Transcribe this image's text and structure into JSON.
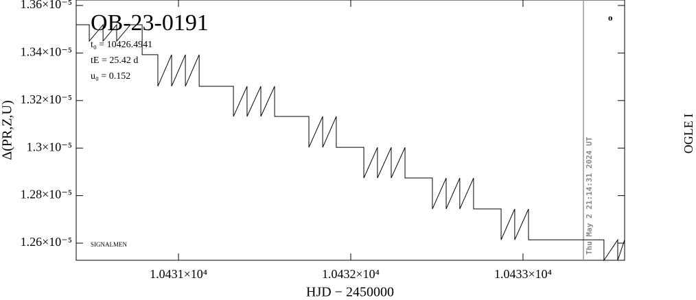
{
  "chart_data": {
    "type": "line",
    "title": "OB-23-0191",
    "x_label": "HJD − 2450000",
    "y_label": "Δ(PR,Z,U)",
    "side_label": "OGLE I",
    "timestamp": "Thu May  2 21:14:31 2024 UT",
    "annotations": [
      "t₀ = 10426.4941",
      "tE = 25.42 d",
      "u₀ = 0.152",
      "SIGNALMEN",
      "o"
    ],
    "marker_line_x": 10433.351,
    "color": "#000000",
    "xlim": [
      10430.406,
      10433.59
    ],
    "ylim": [
      1.2528e-05,
      1.3623e-05
    ],
    "xticks": [
      {
        "value": 10431,
        "label": "1.0431×10⁴"
      },
      {
        "value": 10432,
        "label": "1.0432×10⁴"
      },
      {
        "value": 10433,
        "label": "1.0433×10⁴"
      }
    ],
    "yticks": [
      {
        "value": 1.26e-05,
        "label": "1.26×10⁻⁵"
      },
      {
        "value": 1.28e-05,
        "label": "1.28×10⁻⁵"
      },
      {
        "value": 1.3e-05,
        "label": "1.3×10⁻⁵"
      },
      {
        "value": 1.32e-05,
        "label": "1.32×10⁻⁵"
      },
      {
        "value": 1.34e-05,
        "label": "1.34×10⁻⁵"
      },
      {
        "value": 1.36e-05,
        "label": "1.36×10⁻⁵"
      }
    ],
    "x": [
      10430.406,
      10430.482,
      10430.482,
      10430.562,
      10430.562,
      10430.641,
      10430.641,
      10430.721,
      10430.789,
      10430.789,
      10430.88,
      10430.88,
      10430.96,
      10430.96,
      10431.04,
      10431.04,
      10431.12,
      10431.12,
      10431.219,
      10431.319,
      10431.319,
      10431.398,
      10431.398,
      10431.478,
      10431.478,
      10431.558,
      10431.558,
      10431.669,
      10431.757,
      10431.757,
      10431.837,
      10431.837,
      10431.916,
      10431.916,
      10432.0,
      10432.076,
      10432.076,
      10432.155,
      10432.155,
      10432.235,
      10432.235,
      10432.315,
      10432.315,
      10432.398,
      10432.474,
      10432.474,
      10432.554,
      10432.554,
      10432.633,
      10432.633,
      10432.713,
      10432.713,
      10432.789,
      10432.873,
      10432.873,
      10432.952,
      10432.952,
      10433.032,
      10433.032,
      10433.112,
      10433.398,
      10433.47,
      10433.47,
      10433.55,
      10433.55,
      10433.59
    ],
    "values": [
      1.3519e-05,
      1.3519e-05,
      1.345e-05,
      1.3519e-05,
      1.345e-05,
      1.3519e-05,
      1.345e-05,
      1.3519e-05,
      1.3519e-05,
      1.3393e-05,
      1.3393e-05,
      1.326e-05,
      1.3393e-05,
      1.326e-05,
      1.3393e-05,
      1.326e-05,
      1.3393e-05,
      1.326e-05,
      1.326e-05,
      1.326e-05,
      1.3133e-05,
      1.326e-05,
      1.3133e-05,
      1.326e-05,
      1.3133e-05,
      1.326e-05,
      1.3133e-05,
      1.3133e-05,
      1.3133e-05,
      1.3003e-05,
      1.3133e-05,
      1.3003e-05,
      1.3133e-05,
      1.3003e-05,
      1.3003e-05,
      1.3003e-05,
      1.2874e-05,
      1.3003e-05,
      1.2874e-05,
      1.3003e-05,
      1.2874e-05,
      1.3003e-05,
      1.2874e-05,
      1.2874e-05,
      1.2874e-05,
      1.2744e-05,
      1.2874e-05,
      1.2744e-05,
      1.2874e-05,
      1.2744e-05,
      1.2874e-05,
      1.2744e-05,
      1.2744e-05,
      1.2744e-05,
      1.2614e-05,
      1.2744e-05,
      1.2614e-05,
      1.2744e-05,
      1.2614e-05,
      1.2614e-05,
      1.2614e-05,
      1.2614e-05,
      1.2528e-05,
      1.2614e-05,
      1.2528e-05,
      1.2614e-05
    ]
  }
}
